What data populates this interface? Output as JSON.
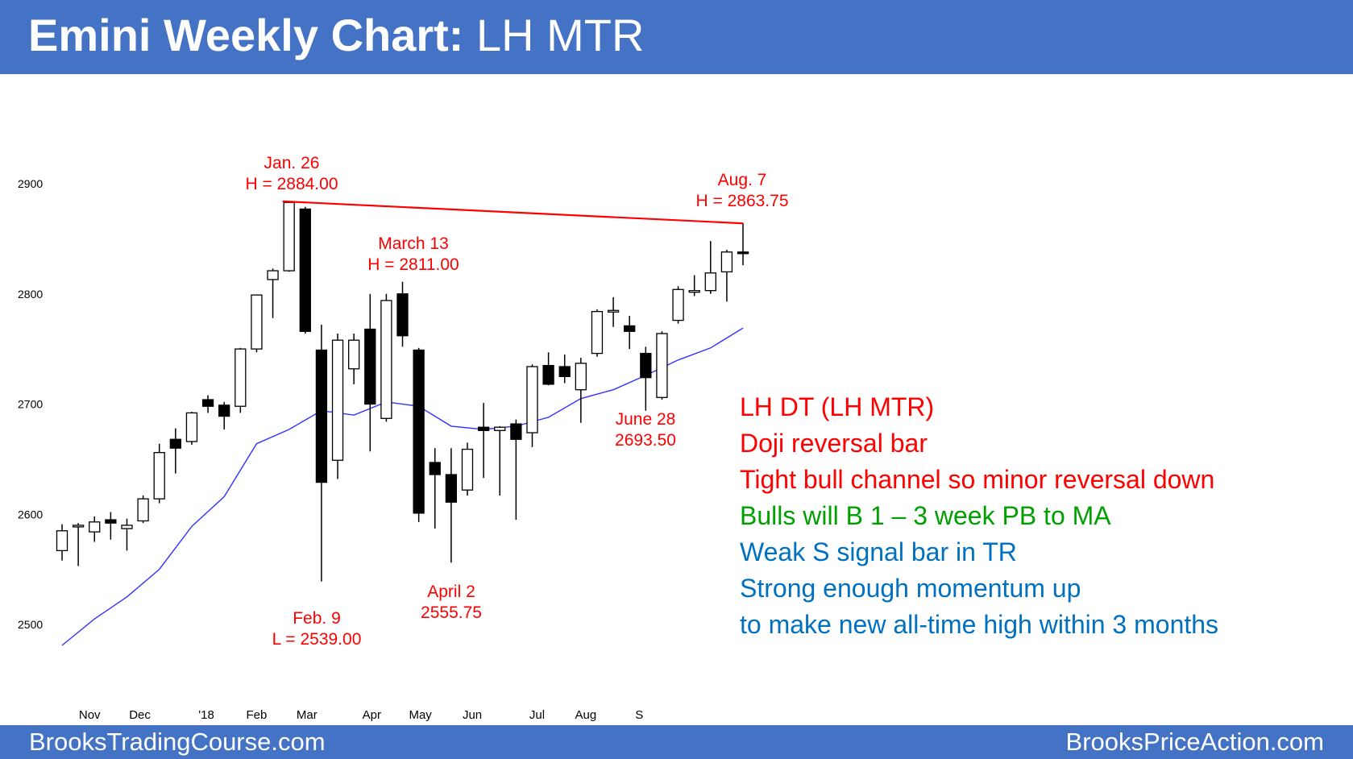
{
  "header": {
    "title_bold": "Emini Weekly Chart:",
    "title_rest": " LH MTR"
  },
  "footer": {
    "left": "BrooksTradingCourse.com",
    "right": "BrooksPriceAction.com"
  },
  "colors": {
    "banner": "#4472c4",
    "annotation": "#ff0000",
    "ma_line": "#3333ff",
    "bull_text": "#00a000",
    "info_text": "#0070c0"
  },
  "annotations": [
    {
      "id": "jan26",
      "lines": [
        "Jan. 26",
        "H = 2884.00"
      ]
    },
    {
      "id": "march13",
      "lines": [
        "March 13",
        "H = 2811.00"
      ]
    },
    {
      "id": "aug7",
      "lines": [
        "Aug. 7",
        "H = 2863.75"
      ]
    },
    {
      "id": "june28",
      "lines": [
        "June 28",
        "2693.50"
      ]
    },
    {
      "id": "april2",
      "lines": [
        "April 2",
        "2555.75"
      ]
    },
    {
      "id": "feb9",
      "lines": [
        "Feb. 9",
        "L = 2539.00"
      ]
    }
  ],
  "notes": [
    {
      "text": "LH DT (LH MTR)",
      "color": "#ff0000"
    },
    {
      "text": "Doji reversal bar",
      "color": "#ff0000"
    },
    {
      "text": "Tight bull channel so minor reversal down",
      "color": "#ff0000"
    },
    {
      "text": "Bulls will B 1 – 3 week PB to MA",
      "color": "#00a000"
    },
    {
      "text": "Weak S signal bar in TR",
      "color": "#0070c0"
    },
    {
      "text": "Strong enough momentum up",
      "color": "#0070c0"
    },
    {
      "text": "to make new all-time high within 3 months",
      "color": "#0070c0"
    }
  ],
  "chart_data": {
    "type": "candlestick",
    "title": "",
    "y_ticks": [
      2500,
      2600,
      2700,
      2800,
      2900
    ],
    "ylim": [
      2480,
      2950
    ],
    "x_ticks": [
      {
        "label": "Nov",
        "bar": 1.7
      },
      {
        "label": "Dec",
        "bar": 4.8
      },
      {
        "label": "'18",
        "bar": 8.9
      },
      {
        "label": "Feb",
        "bar": 12.0
      },
      {
        "label": "Mar",
        "bar": 15.1
      },
      {
        "label": "Apr",
        "bar": 19.1
      },
      {
        "label": "May",
        "bar": 22.1
      },
      {
        "label": "Jun",
        "bar": 25.3
      },
      {
        "label": "Jul",
        "bar": 29.3
      },
      {
        "label": "Aug",
        "bar": 32.3
      },
      {
        "label": "S",
        "bar": 35.6
      }
    ],
    "bars": [
      {
        "o": 2567,
        "h": 2591,
        "l": 2558,
        "c": 2585
      },
      {
        "o": 2589,
        "h": 2592,
        "l": 2553,
        "c": 2590
      },
      {
        "o": 2584,
        "h": 2598,
        "l": 2575,
        "c": 2593
      },
      {
        "o": 2595,
        "h": 2602,
        "l": 2577,
        "c": 2592
      },
      {
        "o": 2587,
        "h": 2596,
        "l": 2567,
        "c": 2590
      },
      {
        "o": 2594,
        "h": 2617,
        "l": 2592,
        "c": 2614
      },
      {
        "o": 2614,
        "h": 2664,
        "l": 2610,
        "c": 2656
      },
      {
        "o": 2668,
        "h": 2678,
        "l": 2637,
        "c": 2660
      },
      {
        "o": 2666,
        "h": 2693,
        "l": 2663,
        "c": 2692
      },
      {
        "o": 2704,
        "h": 2708,
        "l": 2692,
        "c": 2698
      },
      {
        "o": 2699,
        "h": 2702,
        "l": 2677,
        "c": 2689
      },
      {
        "o": 2698,
        "h": 2751,
        "l": 2692,
        "c": 2750
      },
      {
        "o": 2750,
        "h": 2799,
        "l": 2747,
        "c": 2799
      },
      {
        "o": 2813,
        "h": 2823,
        "l": 2778,
        "c": 2821
      },
      {
        "o": 2821,
        "h": 2884,
        "l": 2820,
        "c": 2883
      },
      {
        "o": 2877,
        "h": 2879,
        "l": 2764,
        "c": 2766
      },
      {
        "o": 2749,
        "h": 2772,
        "l": 2539,
        "c": 2629
      },
      {
        "o": 2649,
        "h": 2764,
        "l": 2632,
        "c": 2758
      },
      {
        "o": 2732,
        "h": 2764,
        "l": 2718,
        "c": 2758
      },
      {
        "o": 2768,
        "h": 2800,
        "l": 2657,
        "c": 2700
      },
      {
        "o": 2687,
        "h": 2800,
        "l": 2684,
        "c": 2794
      },
      {
        "o": 2800,
        "h": 2811,
        "l": 2752,
        "c": 2762
      },
      {
        "o": 2749,
        "h": 2751,
        "l": 2593,
        "c": 2601
      },
      {
        "o": 2647,
        "h": 2660,
        "l": 2587,
        "c": 2636
      },
      {
        "o": 2636,
        "h": 2660,
        "l": 2556,
        "c": 2611
      },
      {
        "o": 2622,
        "h": 2665,
        "l": 2617,
        "c": 2659
      },
      {
        "o": 2679,
        "h": 2701,
        "l": 2633,
        "c": 2676
      },
      {
        "o": 2676,
        "h": 2680,
        "l": 2617,
        "c": 2679
      },
      {
        "o": 2682,
        "h": 2686,
        "l": 2595,
        "c": 2668
      },
      {
        "o": 2674,
        "h": 2736,
        "l": 2661,
        "c": 2734
      },
      {
        "o": 2735,
        "h": 2747,
        "l": 2717,
        "c": 2718
      },
      {
        "o": 2734,
        "h": 2745,
        "l": 2719,
        "c": 2725
      },
      {
        "o": 2713,
        "h": 2742,
        "l": 2683,
        "c": 2737
      },
      {
        "o": 2746,
        "h": 2786,
        "l": 2743,
        "c": 2784
      },
      {
        "o": 2785,
        "h": 2797,
        "l": 2770,
        "c": 2785
      },
      {
        "o": 2771,
        "h": 2780,
        "l": 2750,
        "c": 2766
      },
      {
        "o": 2746,
        "h": 2752,
        "l": 2694,
        "c": 2724
      },
      {
        "o": 2706,
        "h": 2766,
        "l": 2704,
        "c": 2764
      },
      {
        "o": 2776,
        "h": 2807,
        "l": 2773,
        "c": 2804
      },
      {
        "o": 2802,
        "h": 2817,
        "l": 2798,
        "c": 2803
      },
      {
        "o": 2803,
        "h": 2848,
        "l": 2800,
        "c": 2819
      },
      {
        "o": 2820,
        "h": 2840,
        "l": 2793,
        "c": 2838
      },
      {
        "o": 2838,
        "h": 2864,
        "l": 2826,
        "c": 2837
      }
    ],
    "moving_average": {
      "bars": [
        0,
        2,
        4,
        6,
        8,
        10,
        12,
        14,
        16,
        18,
        20,
        22,
        24,
        26,
        28,
        30,
        32,
        34,
        36,
        38,
        40,
        42
      ],
      "values": [
        2481,
        2505,
        2525,
        2550,
        2589,
        2616,
        2664,
        2677,
        2694,
        2690,
        2702,
        2698,
        2680,
        2677,
        2680,
        2688,
        2705,
        2713,
        2726,
        2740,
        2751,
        2769
      ]
    },
    "trendline": {
      "from": {
        "bar": 14,
        "value": 2884
      },
      "to": {
        "bar": 42,
        "value": 2864
      }
    }
  }
}
